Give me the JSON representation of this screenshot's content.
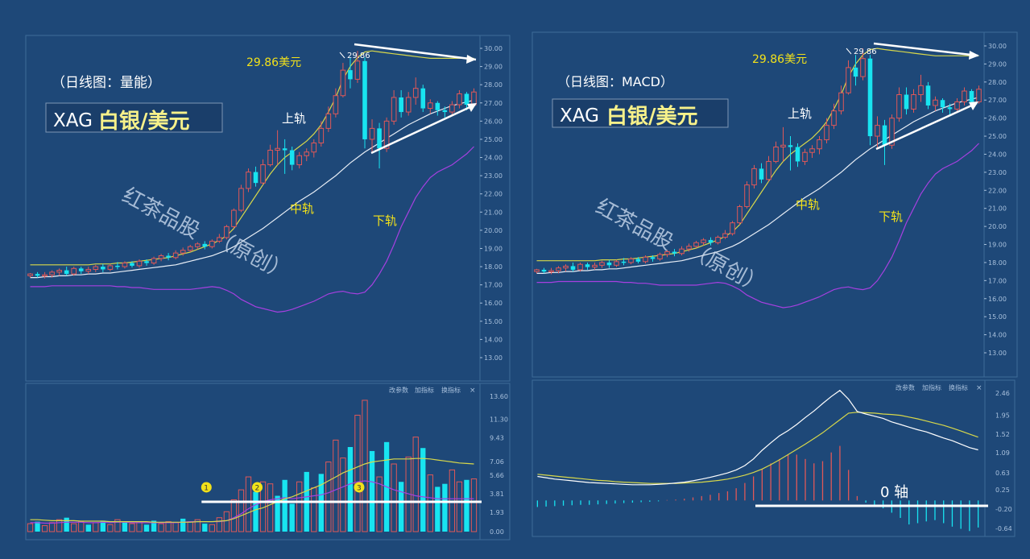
{
  "colors": {
    "background": "#1e4878",
    "frame": "#3d6b99",
    "up_candle": "#e05858",
    "down_candle": "#18e4f0",
    "upper_band": "#d8d84a",
    "middle_band": "#e8eef6",
    "lower_band": "#a640e0",
    "volume_ma_long": "#d8d84a",
    "macd_dif": "#ffffff",
    "macd_dea": "#d8d84a",
    "annotation_yellow": "#f2e11a",
    "axis_text": "#a8c0dc"
  },
  "left_panel": {
    "subtitle": "（日线图：量能）",
    "xag_label": "XAG",
    "title": "白银/美元",
    "peak_label": "29.86美元",
    "peak_tag": "29.86",
    "upper_band_label": "上轨",
    "middle_band_label": "中轨",
    "lower_band_label": "下轨",
    "watermark_line1": "红茶品股",
    "watermark_line2": "（原创）",
    "indicator_buttons": [
      "改参数",
      "加指标",
      "换指标"
    ],
    "close_icon": "×",
    "markers": [
      "1",
      "2",
      "3"
    ]
  },
  "right_panel": {
    "subtitle": "（日线图：MACD）",
    "xag_label": "XAG",
    "title": "白银/美元",
    "peak_label": "29.86美元",
    "peak_tag": "29.86",
    "upper_band_label": "上轨",
    "middle_band_label": "中轨",
    "lower_band_label": "下轨",
    "watermark_line1": "红茶品股",
    "watermark_line2": "（原创）",
    "indicator_buttons": [
      "改参数",
      "加指标",
      "换指标"
    ],
    "close_icon": "×",
    "zero_axis_label": "0 轴"
  },
  "chart_data": [
    {
      "type": "candlestick",
      "name_hint": "price",
      "ylim": [
        12.5,
        30.5
      ],
      "y_ticks": [
        "30.00",
        "29.00",
        "28.00",
        "27.00",
        "26.00",
        "25.00",
        "24.00",
        "23.00",
        "22.00",
        "21.00",
        "20.00",
        "19.00",
        "18.00",
        "17.00",
        "16.00",
        "15.00",
        "14.00",
        "13.00"
      ],
      "candles": [
        [
          17.5,
          17.6,
          17.4,
          17.65
        ],
        [
          17.6,
          17.5,
          17.4,
          17.7
        ],
        [
          17.5,
          17.55,
          17.35,
          17.7
        ],
        [
          17.55,
          17.7,
          17.4,
          17.8
        ],
        [
          17.7,
          17.8,
          17.5,
          17.9
        ],
        [
          17.8,
          17.6,
          17.5,
          18.0
        ],
        [
          17.6,
          17.9,
          17.5,
          18.0
        ],
        [
          17.9,
          17.75,
          17.6,
          18.0
        ],
        [
          17.75,
          17.85,
          17.6,
          18.0
        ],
        [
          17.85,
          18.0,
          17.7,
          18.1
        ],
        [
          18.0,
          17.85,
          17.7,
          18.15
        ],
        [
          17.85,
          18.05,
          17.75,
          18.15
        ],
        [
          18.05,
          18.0,
          17.85,
          18.25
        ],
        [
          18.0,
          18.2,
          17.9,
          18.3
        ],
        [
          18.2,
          18.05,
          17.95,
          18.3
        ],
        [
          18.05,
          18.3,
          17.95,
          18.4
        ],
        [
          18.3,
          18.2,
          18.05,
          18.4
        ],
        [
          18.2,
          18.45,
          18.1,
          18.55
        ],
        [
          18.45,
          18.6,
          18.3,
          18.7
        ],
        [
          18.6,
          18.5,
          18.35,
          18.75
        ],
        [
          18.5,
          18.75,
          18.4,
          18.9
        ],
        [
          18.75,
          18.9,
          18.6,
          19.05
        ],
        [
          18.9,
          19.1,
          18.8,
          19.2
        ],
        [
          19.1,
          19.25,
          18.95,
          19.35
        ],
        [
          19.25,
          19.1,
          18.95,
          19.4
        ],
        [
          19.1,
          19.4,
          19.0,
          19.5
        ],
        [
          19.4,
          19.6,
          19.3,
          19.8
        ],
        [
          19.6,
          20.2,
          19.5,
          20.3
        ],
        [
          20.2,
          21.1,
          20.1,
          21.2
        ],
        [
          21.1,
          22.3,
          21.0,
          22.5
        ],
        [
          22.3,
          23.2,
          22.1,
          23.4
        ],
        [
          23.2,
          22.6,
          22.4,
          23.5
        ],
        [
          22.6,
          23.6,
          22.5,
          23.9
        ],
        [
          23.6,
          24.4,
          23.5,
          24.7
        ],
        [
          24.4,
          24.5,
          23.6,
          25.5
        ],
        [
          24.5,
          24.4,
          23.1,
          25.0
        ],
        [
          24.4,
          23.6,
          23.3,
          24.6
        ],
        [
          23.6,
          24.1,
          23.4,
          24.3
        ],
        [
          24.1,
          24.3,
          23.8,
          24.5
        ],
        [
          24.3,
          24.8,
          24.0,
          25.0
        ],
        [
          24.8,
          25.6,
          24.6,
          26.0
        ],
        [
          25.6,
          26.4,
          25.4,
          26.8
        ],
        [
          26.4,
          27.4,
          26.2,
          27.8
        ],
        [
          27.4,
          28.8,
          27.3,
          29.2
        ],
        [
          28.8,
          28.3,
          27.8,
          29.5
        ],
        [
          28.3,
          29.3,
          28.1,
          29.86
        ],
        [
          29.3,
          25.0,
          24.5,
          29.5
        ],
        [
          25.0,
          25.6,
          24.3,
          26.1
        ],
        [
          25.6,
          24.5,
          23.4,
          25.9
        ],
        [
          24.5,
          26.0,
          24.3,
          26.2
        ],
        [
          26.0,
          27.3,
          25.8,
          27.7
        ],
        [
          27.3,
          26.5,
          26.2,
          27.7
        ],
        [
          26.5,
          27.3,
          26.3,
          27.6
        ],
        [
          27.3,
          27.8,
          26.9,
          28.4
        ],
        [
          27.8,
          26.7,
          26.5,
          28.0
        ],
        [
          26.7,
          27.0,
          26.4,
          27.2
        ],
        [
          27.0,
          26.6,
          26.3,
          27.1
        ],
        [
          26.6,
          26.5,
          26.2,
          26.8
        ],
        [
          26.5,
          26.9,
          26.3,
          27.1
        ],
        [
          26.9,
          27.5,
          26.7,
          27.7
        ],
        [
          27.5,
          26.9,
          26.6,
          27.6
        ],
        [
          26.9,
          27.6,
          26.8,
          27.8
        ]
      ],
      "upper_band": [
        18.1,
        18.1,
        18.1,
        18.1,
        18.1,
        18.1,
        18.1,
        18.1,
        18.1,
        18.15,
        18.15,
        18.15,
        18.2,
        18.2,
        18.25,
        18.3,
        18.35,
        18.4,
        18.45,
        18.5,
        18.6,
        18.7,
        18.8,
        18.95,
        19.1,
        19.25,
        19.45,
        19.7,
        20.1,
        20.7,
        21.3,
        21.9,
        22.5,
        23.1,
        23.6,
        24.0,
        24.3,
        24.6,
        24.9,
        25.3,
        25.8,
        26.5,
        27.3,
        28.3,
        29.0,
        29.5,
        29.8,
        29.86,
        29.8,
        29.75,
        29.7,
        29.65,
        29.6,
        29.55,
        29.5,
        29.45,
        29.45,
        29.45,
        29.45,
        29.45,
        29.45,
        29.45
      ],
      "middle_band": [
        17.4,
        17.4,
        17.45,
        17.45,
        17.5,
        17.5,
        17.55,
        17.55,
        17.6,
        17.6,
        17.65,
        17.65,
        17.7,
        17.75,
        17.8,
        17.85,
        17.9,
        17.95,
        18.0,
        18.05,
        18.1,
        18.2,
        18.3,
        18.4,
        18.5,
        18.6,
        18.75,
        18.9,
        19.1,
        19.35,
        19.6,
        19.85,
        20.1,
        20.4,
        20.7,
        21.0,
        21.3,
        21.6,
        21.85,
        22.1,
        22.4,
        22.7,
        23.0,
        23.35,
        23.7,
        24.0,
        24.3,
        24.55,
        24.8,
        25.05,
        25.3,
        25.55,
        25.8,
        26.0,
        26.2,
        26.4,
        26.55,
        26.7,
        26.85,
        26.95,
        27.05,
        27.15
      ],
      "lower_band": [
        16.9,
        16.9,
        16.9,
        16.95,
        16.95,
        16.95,
        16.95,
        16.95,
        16.95,
        16.95,
        16.95,
        16.95,
        16.9,
        16.9,
        16.85,
        16.85,
        16.8,
        16.75,
        16.75,
        16.75,
        16.75,
        16.75,
        16.75,
        16.8,
        16.85,
        16.9,
        16.85,
        16.7,
        16.5,
        16.2,
        16.0,
        15.8,
        15.7,
        15.6,
        15.5,
        15.55,
        15.65,
        15.8,
        15.95,
        16.1,
        16.3,
        16.5,
        16.6,
        16.65,
        16.55,
        16.5,
        16.6,
        17.0,
        17.6,
        18.3,
        19.2,
        20.2,
        21.0,
        21.8,
        22.4,
        22.9,
        23.2,
        23.4,
        23.6,
        23.9,
        24.2,
        24.6
      ]
    },
    {
      "type": "bar",
      "name_hint": "volume",
      "ylim": [
        0,
        14.5
      ],
      "y_ticks": [
        "13.60",
        "11.30",
        "9.43",
        "7.06",
        "5.66",
        "3.81",
        "1.93",
        "0.00"
      ],
      "values": [
        0.8,
        1.0,
        0.6,
        0.9,
        1.2,
        1.4,
        0.8,
        1.0,
        0.7,
        0.9,
        1.1,
        0.7,
        1.2,
        0.9,
        0.8,
        1.0,
        0.7,
        1.1,
        0.8,
        1.0,
        0.9,
        1.3,
        1.0,
        1.2,
        0.8,
        0.7,
        1.4,
        2.0,
        3.2,
        4.2,
        5.5,
        4.0,
        5.0,
        4.8,
        3.6,
        5.2,
        2.8,
        5.0,
        6.0,
        4.4,
        5.8,
        7.0,
        9.2,
        7.4,
        8.5,
        11.7,
        13.2,
        8.1,
        5.5,
        9.0,
        6.8,
        5.0,
        7.5,
        9.5,
        8.4,
        5.7,
        4.5,
        4.8,
        6.2,
        5.0,
        5.2,
        5.3
      ],
      "bar_colors": [
        "u",
        "d",
        "u",
        "u",
        "u",
        "d",
        "u",
        "u",
        "d",
        "u",
        "d",
        "u",
        "u",
        "d",
        "u",
        "u",
        "d",
        "d",
        "u",
        "u",
        "u",
        "d",
        "u",
        "u",
        "d",
        "u",
        "u",
        "u",
        "u",
        "u",
        "u",
        "d",
        "u",
        "u",
        "d",
        "d",
        "d",
        "u",
        "d",
        "u",
        "d",
        "u",
        "u",
        "u",
        "d",
        "u",
        "u",
        "d",
        "u",
        "d",
        "u",
        "d",
        "u",
        "u",
        "d",
        "u",
        "d",
        "d",
        "u",
        "u",
        "d",
        "u"
      ],
      "ma_long": [
        1.2,
        1.2,
        1.15,
        1.1,
        1.1,
        1.1,
        1.1,
        1.05,
        1.05,
        1.05,
        1.05,
        1.0,
        1.0,
        1.0,
        1.0,
        1.0,
        1.0,
        0.95,
        0.95,
        0.95,
        0.95,
        0.95,
        0.95,
        1.0,
        1.0,
        1.0,
        1.05,
        1.1,
        1.3,
        1.6,
        1.9,
        2.2,
        2.4,
        2.7,
        3.0,
        3.3,
        3.5,
        3.8,
        4.1,
        4.4,
        4.7,
        5.1,
        5.5,
        5.9,
        6.2,
        6.5,
        6.8,
        7.0,
        7.1,
        7.2,
        7.3,
        7.3,
        7.3,
        7.35,
        7.35,
        7.3,
        7.2,
        7.1,
        7.0,
        6.9,
        6.85,
        6.8
      ],
      "ma_short": [
        0.9,
        0.9,
        0.85,
        0.85,
        0.9,
        0.95,
        0.95,
        0.95,
        0.9,
        0.9,
        0.95,
        0.9,
        0.95,
        0.95,
        0.9,
        0.9,
        0.9,
        0.9,
        0.9,
        0.9,
        0.9,
        0.95,
        1.0,
        1.0,
        1.0,
        1.0,
        1.0,
        1.1,
        1.4,
        1.8,
        2.3,
        2.7,
        3.0,
        3.2,
        3.3,
        3.4,
        3.3,
        3.4,
        3.5,
        3.6,
        3.7,
        3.9,
        4.2,
        4.5,
        4.8,
        5.0,
        5.1,
        5.0,
        4.8,
        4.5,
        4.2,
        4.0,
        3.8,
        3.6,
        3.5,
        3.4,
        3.3,
        3.3,
        3.3,
        3.3,
        3.3,
        3.3
      ],
      "markers_at": [
        24,
        31,
        45
      ],
      "threshold_line": 3.0
    },
    {
      "type": "line",
      "name_hint": "macd",
      "ylim": [
        -0.95,
        2.6
      ],
      "y_ticks": [
        "2.46",
        "1.95",
        "1.52",
        "1.09",
        "0.63",
        "0.25",
        "-0.20",
        "-0.64"
      ],
      "dif": [
        0.55,
        0.52,
        0.49,
        0.47,
        0.45,
        0.43,
        0.41,
        0.4,
        0.39,
        0.38,
        0.37,
        0.36,
        0.36,
        0.36,
        0.37,
        0.38,
        0.4,
        0.42,
        0.45,
        0.49,
        0.53,
        0.58,
        0.63,
        0.7,
        0.8,
        0.95,
        1.15,
        1.32,
        1.48,
        1.6,
        1.74,
        1.9,
        2.05,
        2.22,
        2.38,
        2.52,
        2.32,
        2.04,
        1.98,
        1.93,
        1.88,
        1.8,
        1.74,
        1.68,
        1.62,
        1.57,
        1.5,
        1.43,
        1.37,
        1.29,
        1.21,
        1.16
      ],
      "dea": [
        0.6,
        0.58,
        0.56,
        0.54,
        0.52,
        0.5,
        0.48,
        0.46,
        0.45,
        0.43,
        0.42,
        0.41,
        0.4,
        0.39,
        0.39,
        0.39,
        0.39,
        0.4,
        0.41,
        0.42,
        0.44,
        0.46,
        0.49,
        0.53,
        0.58,
        0.64,
        0.72,
        0.82,
        0.93,
        1.05,
        1.17,
        1.29,
        1.42,
        1.55,
        1.7,
        1.85,
        2.0,
        2.02,
        2.01,
        2.0,
        1.98,
        1.97,
        1.95,
        1.91,
        1.87,
        1.82,
        1.77,
        1.72,
        1.66,
        1.59,
        1.52,
        1.45
      ],
      "histogram": [
        -0.15,
        -0.14,
        -0.13,
        -0.12,
        -0.11,
        -0.1,
        -0.1,
        -0.09,
        -0.08,
        -0.07,
        -0.06,
        -0.05,
        -0.04,
        -0.03,
        -0.02,
        0.01,
        0.02,
        0.04,
        0.07,
        0.1,
        0.13,
        0.17,
        0.21,
        0.28,
        0.4,
        0.55,
        0.72,
        0.85,
        0.95,
        1.05,
        1.05,
        0.95,
        0.85,
        0.9,
        1.1,
        1.25,
        0.7,
        0.1,
        -0.05,
        -0.1,
        -0.18,
        -0.28,
        -0.4,
        -0.55,
        -0.52,
        -0.48,
        -0.45,
        -0.52,
        -0.6,
        -0.65,
        -0.7,
        -0.62
      ]
    }
  ]
}
